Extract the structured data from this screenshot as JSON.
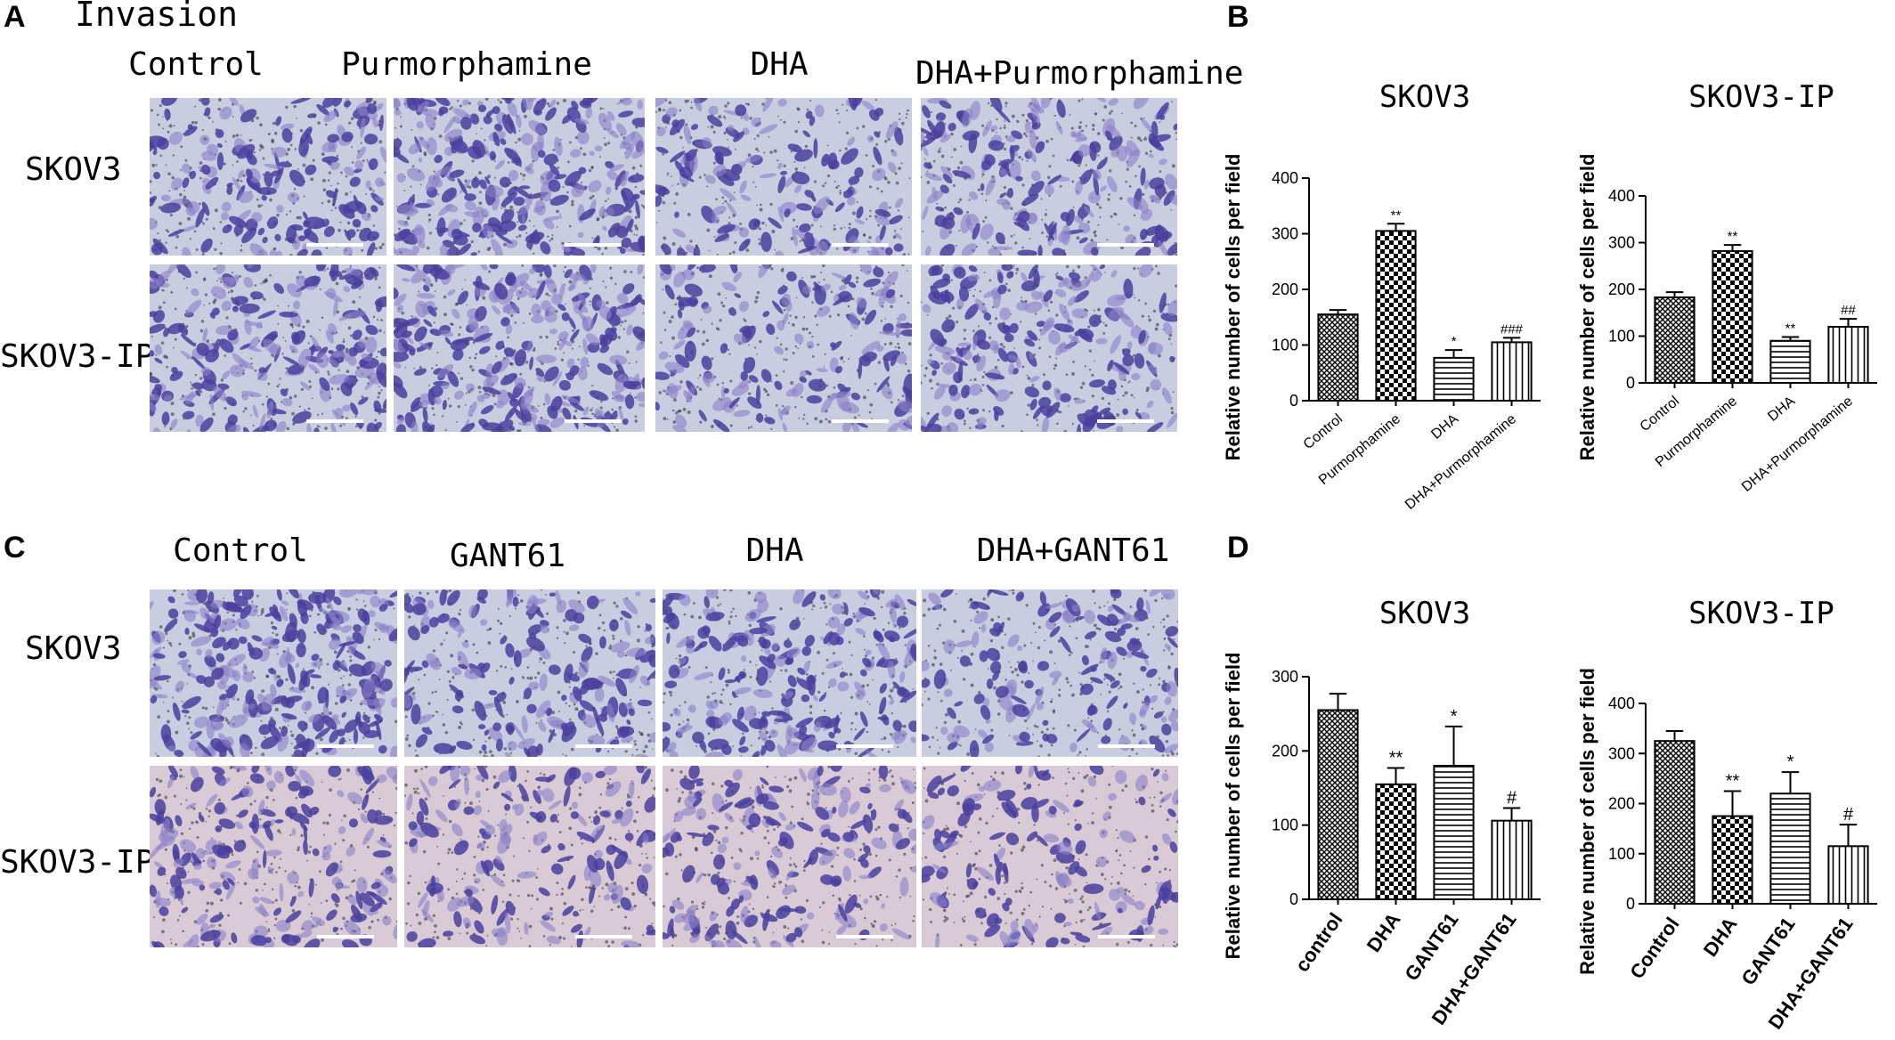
{
  "panels": {
    "A": {
      "letter": "A",
      "heading": "Invasion",
      "columns": [
        "Control",
        "Purmorphamine",
        "DHA",
        "DHA+Purmorphamine"
      ],
      "rows": [
        "SKOV3",
        "SKOV3-IP"
      ]
    },
    "B": {
      "letter": "B"
    },
    "C": {
      "letter": "C",
      "columns": [
        "Control",
        "GANT61",
        "DHA",
        "DHA+GANT61"
      ],
      "rows": [
        "SKOV3",
        "SKOV3-IP"
      ]
    },
    "D": {
      "letter": "D"
    }
  },
  "colors": {
    "stain_dark": "#4a3f9e",
    "stain_light": "#8a80c8",
    "background_blue": "#c9cde0",
    "background_pink": "#d9cbd6"
  },
  "chart_data": [
    {
      "id": "B1",
      "type": "bar",
      "title": "SKOV3",
      "ylabel": "Relative number of cells per field",
      "categories": [
        "Control",
        "Purmorphamine",
        "DHA",
        "DHA+Purmorphamine"
      ],
      "values": [
        155,
        305,
        77,
        105
      ],
      "errors": [
        8,
        13,
        14,
        8
      ],
      "significance": [
        "",
        "**",
        "*",
        "###"
      ],
      "patterns": [
        "crosshatch",
        "checker",
        "horizontal",
        "vertical"
      ],
      "ylim": [
        0,
        400
      ],
      "yticks": [
        0,
        100,
        200,
        300,
        400
      ]
    },
    {
      "id": "B2",
      "type": "bar",
      "title": "SKOV3-IP",
      "ylabel": "Relative number of cells per field",
      "categories": [
        "Control",
        "Purmorphamine",
        "DHA",
        "DHA+Purmorphamine"
      ],
      "values": [
        183,
        282,
        90,
        120
      ],
      "errors": [
        11,
        13,
        8,
        17
      ],
      "significance": [
        "",
        "**",
        "**",
        "##"
      ],
      "patterns": [
        "crosshatch",
        "checker",
        "horizontal",
        "vertical"
      ],
      "ylim": [
        0,
        400
      ],
      "yticks": [
        0,
        100,
        200,
        300,
        400
      ]
    },
    {
      "id": "D1",
      "type": "bar",
      "title": "SKOV3",
      "ylabel": "Relative number of cells per field",
      "categories": [
        "control",
        "DHA",
        "GANT61",
        "DHA+GANT61"
      ],
      "values": [
        255,
        155,
        180,
        106
      ],
      "errors": [
        22,
        22,
        53,
        17
      ],
      "significance": [
        "",
        "**",
        "*",
        "#"
      ],
      "patterns": [
        "crosshatch",
        "checker",
        "horizontal",
        "vertical"
      ],
      "ylim": [
        0,
        300
      ],
      "yticks": [
        0,
        100,
        200,
        300
      ]
    },
    {
      "id": "D2",
      "type": "bar",
      "title": "SKOV3-IP",
      "ylabel": "Relative number of cells per field",
      "categories": [
        "Control",
        "DHA",
        "GANT61",
        "DHA+GANT61"
      ],
      "values": [
        325,
        175,
        220,
        115
      ],
      "errors": [
        20,
        50,
        43,
        43
      ],
      "significance": [
        "",
        "**",
        "*",
        "#"
      ],
      "patterns": [
        "crosshatch",
        "checker",
        "horizontal",
        "vertical"
      ],
      "ylim": [
        0,
        400
      ],
      "yticks": [
        0,
        100,
        200,
        300,
        400
      ]
    }
  ]
}
